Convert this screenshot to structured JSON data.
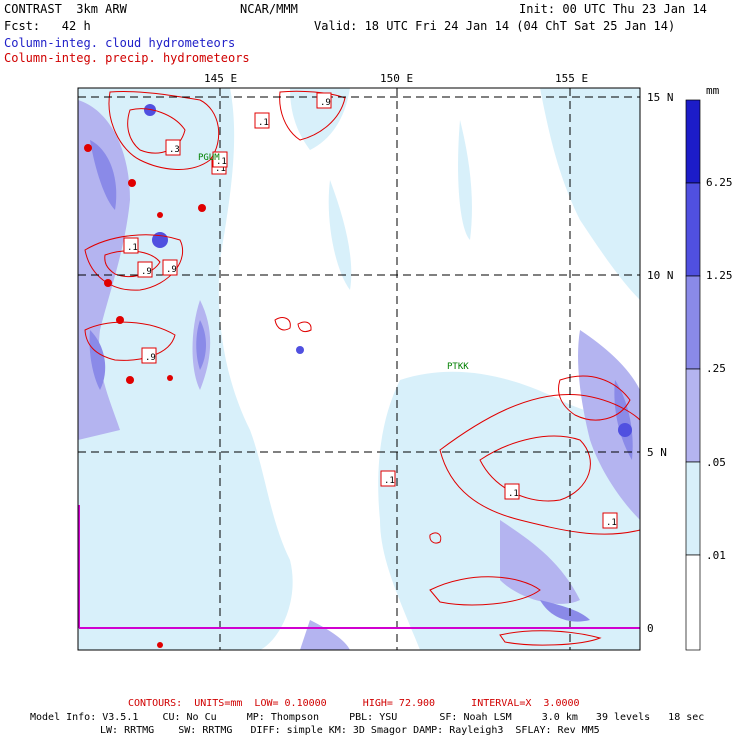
{
  "header": {
    "line1_left": "CONTRAST  3km ARW",
    "line1_center": "NCAR/MMM",
    "line1_right": "Init: 00 UTC Thu 23 Jan 14",
    "line2_left": "Fcst:   42 h",
    "line2_right": "Valid: 18 UTC Fri 24 Jan 14 (04 ChT Sat 25 Jan 14)",
    "field1": "Column-integ. cloud hydrometeors",
    "field2": "Column-integ. precip. hydrometeors"
  },
  "map": {
    "lon_labels": [
      "145 E",
      "150 E",
      "155 E"
    ],
    "lat_labels": [
      "15 N",
      "10 N",
      "5 N",
      "0"
    ],
    "stations": [
      "PGUM",
      "PTKK"
    ],
    "contour_labels": [
      ".1",
      ".1",
      ".3",
      ".1",
      ".9",
      ".9",
      ".9",
      ".1",
      ".9",
      ".1",
      ".1",
      ".1"
    ]
  },
  "colorbar": {
    "unit": "mm",
    "levels": [
      "6.25",
      "1.25",
      ".25",
      ".05",
      ".01"
    ],
    "colors": [
      "#1c1cc8",
      "#5050e0",
      "#8a8ae8",
      "#b4b4f0",
      "#d8f0fa",
      "#ffffff"
    ]
  },
  "footer": {
    "contours_line": "CONTOURS:  UNITS=mm  LOW= 0.10000      HIGH= 72.900      INTERVAL=X  3.0000",
    "model_line1": "Model Info: V3.5.1    CU: No Cu     MP: Thompson     PBL: YSU       SF: Noah LSM     3.0 km   39 levels   18 sec",
    "model_line2": "LW: RRTMG    SW: RRTMG   DIFF: simple KM: 3D Smagor DAMP: Rayleigh3  SFLAY: Rev MM5"
  }
}
